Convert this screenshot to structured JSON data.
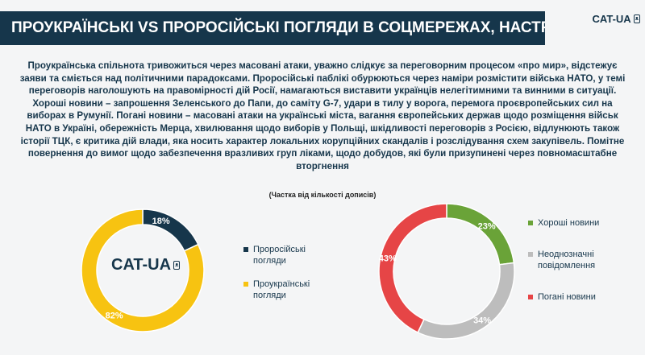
{
  "header": {
    "title": "ПРОУКРАЇНСЬКІ VS ПРОРОСІЙСЬКІ ПОГЛЯДИ В СОЦМЕРЕЖАХ, НАСТРОЇ",
    "brand": "CAT-UA"
  },
  "body_text": {
    "paragraph_1": "Проукраїнська спільнота тривожиться через масовані атаки, уважно слідкує за переговорним процесом «про мир», відстежує заяви та сміється над політичними парадоксами. Проросійські паблікі обурюються через наміри розмістити війська НАТО, у темі переговорів наголошують на правомірності дій Росії, намагаються виставити українців нелегітимними та винними в ситуації.",
    "paragraph_2": "Хороші новини – запрошення Зеленського до Папи, до саміту G-7, удари в тилу у ворога, перемога проєвропейських сил на виборах в Румунії. Погані новини – масовані атаки на українські міста, вагання європейських держав щодо розміщення військ НАТО в Україні, обережність Мерца, хвилювання щодо виборів у Польщі, шкідливості переговорів з Росією, відлунюють також історії ТЦК, є критика дій влади, яка носить характер локальних корупційних скандалів і розслідування схем закупівель. Помітне повернення до вимог щодо забезпечення вразливих груп ліками, щодо добудов, які були призупинені через повномасштабне вторгнення"
  },
  "subtitle": "(Частка від кількості дописів)",
  "chart_logo": {
    "text": "CAT-UA"
  },
  "colors": {
    "title_bg": "#16364b",
    "navy": "#16364b",
    "yellow": "#f7c311",
    "green": "#6aa338",
    "gray": "#bdbdbd",
    "red": "#e64546"
  },
  "chart_data": [
    {
      "type": "pie",
      "style": "donut",
      "series": [
        {
          "name": "Проросійські погляди",
          "value": 18,
          "label": "18%",
          "color": "#16364b"
        },
        {
          "name": "Проукраїнські погляди",
          "value": 82,
          "label": "82%",
          "color": "#f7c311"
        }
      ],
      "legend": [
        "Проросійські погляди",
        "Проукраїнські погляди"
      ],
      "legend_placement": "right"
    },
    {
      "type": "pie",
      "style": "donut",
      "series": [
        {
          "name": "Хороші новини",
          "value": 23,
          "label": "23%",
          "color": "#6aa338"
        },
        {
          "name": "Неоднозначні повідомлення",
          "value": 34,
          "label": "34%",
          "color": "#bdbdbd"
        },
        {
          "name": "Погані новини",
          "value": 43,
          "label": "43%",
          "color": "#e64546"
        }
      ],
      "legend": [
        "Хороші новини",
        "Неоднозначні повідомлення",
        "Погані новини"
      ],
      "legend_placement": "right"
    }
  ]
}
